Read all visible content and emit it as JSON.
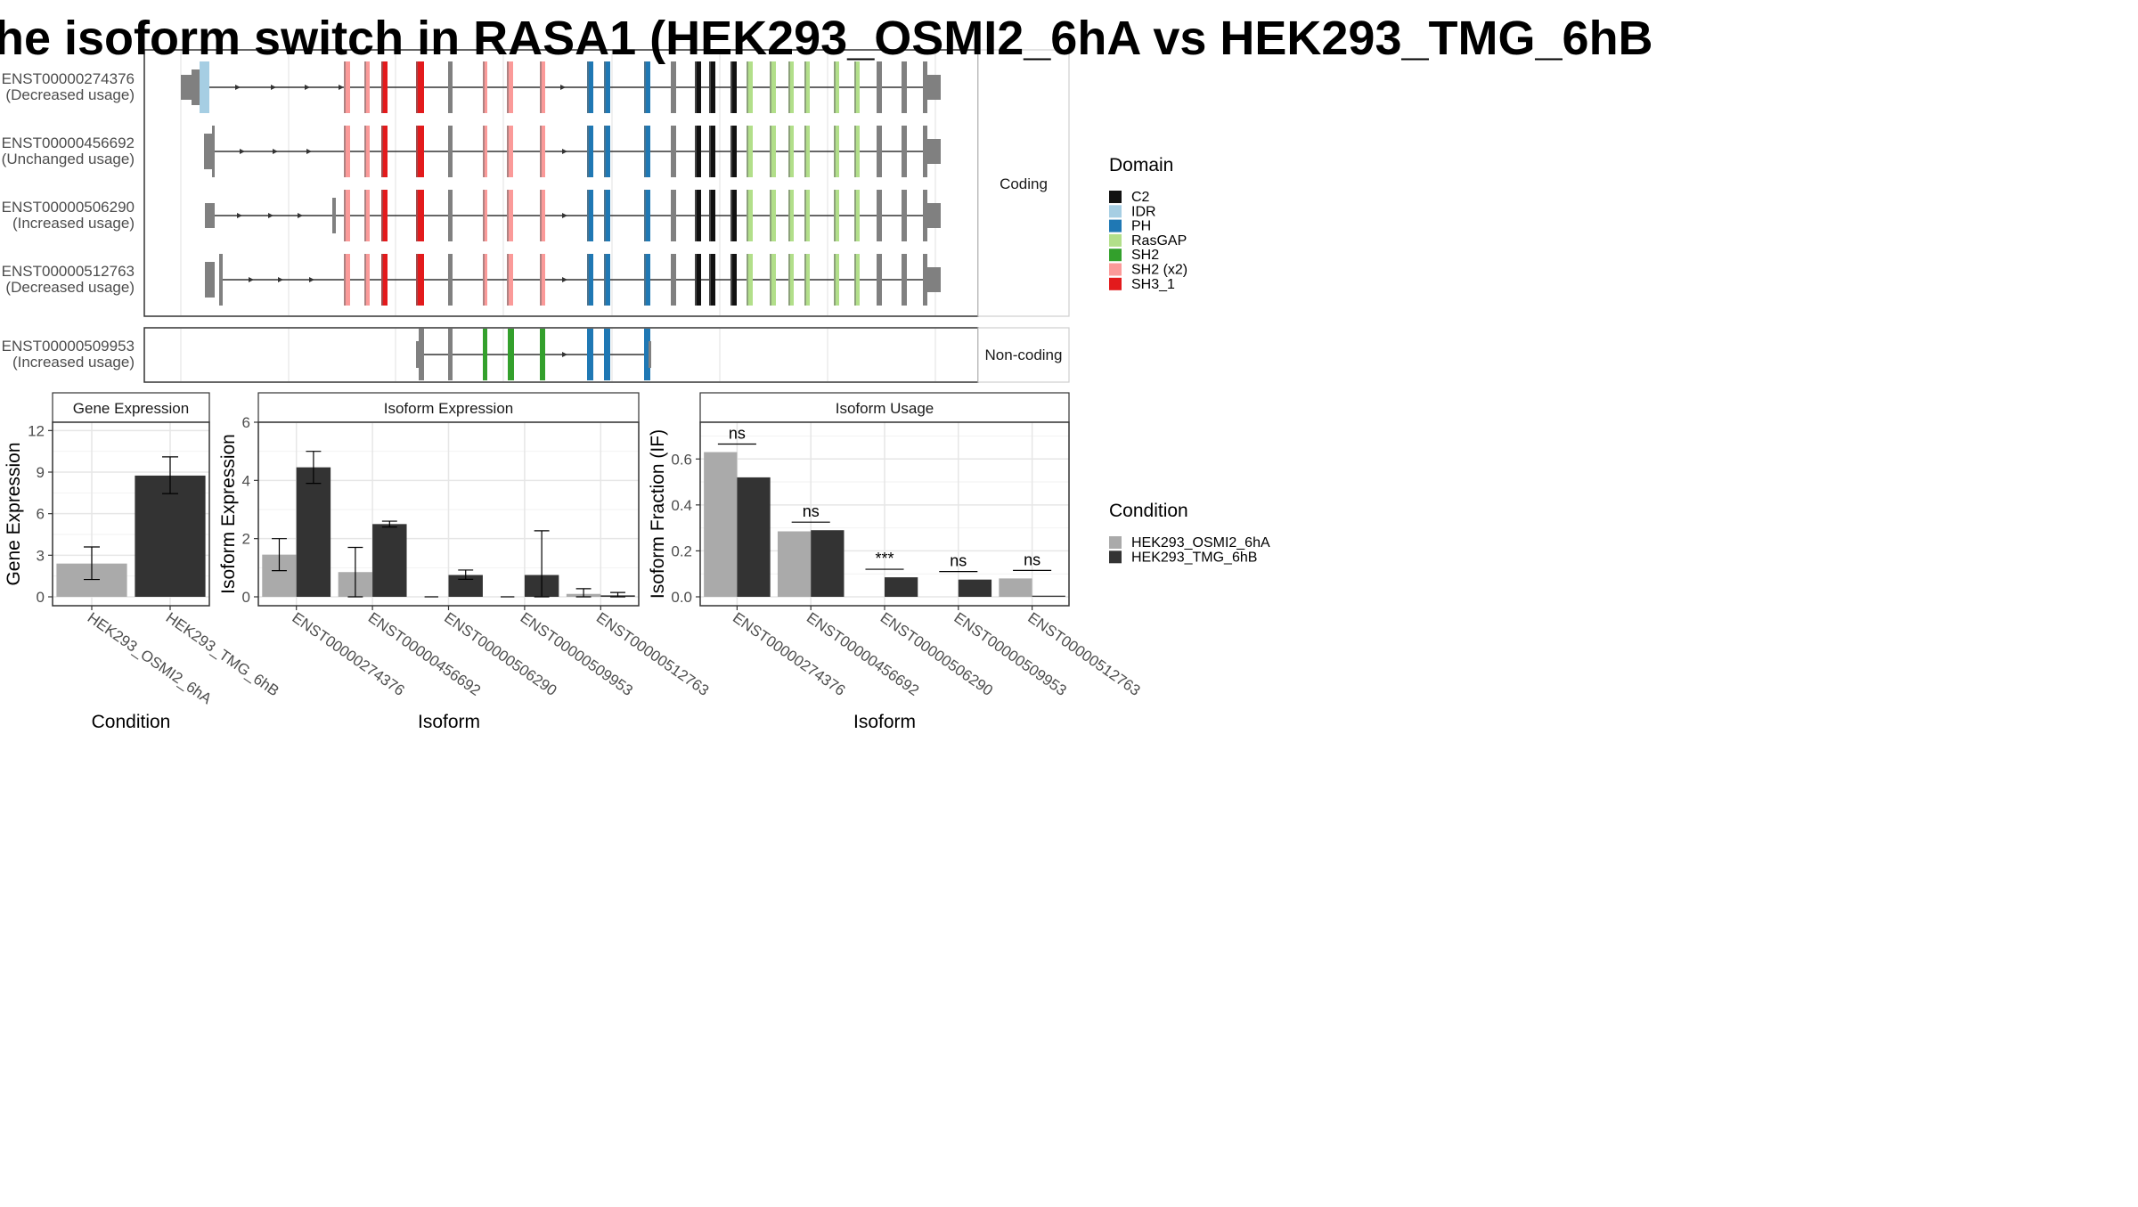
{
  "title": "he isoform switch in RASA1 (HEK293_OSMI2_6hA vs HEK293_TMG_6hB",
  "transcripts_panel": {
    "strip_coding": "Coding",
    "strip_noncoding": "Non-coding",
    "coding": [
      {
        "id": "ENST00000274376",
        "usage": "(Decreased usage)"
      },
      {
        "id": "ENST00000456692",
        "usage": "(Unchanged usage)"
      },
      {
        "id": "ENST00000506290",
        "usage": "(Increased usage)"
      },
      {
        "id": "ENST00000512763",
        "usage": "(Decreased usage)"
      }
    ],
    "noncoding": [
      {
        "id": "ENST00000509953",
        "usage": "(Increased usage)"
      }
    ]
  },
  "legend_domain": {
    "title": "Domain",
    "items": [
      {
        "label": "C2",
        "color": "#111111"
      },
      {
        "label": "IDR",
        "color": "#a6cee3"
      },
      {
        "label": "PH",
        "color": "#1f78b4"
      },
      {
        "label": "RasGAP",
        "color": "#b2df8a"
      },
      {
        "label": "SH2",
        "color": "#33a02c"
      },
      {
        "label": "SH2 (x2)",
        "color": "#fb9a99"
      },
      {
        "label": "SH3_1",
        "color": "#e31a1c"
      }
    ]
  },
  "legend_condition": {
    "title": "Condition",
    "items": [
      {
        "label": "HEK293_OSMI2_6hA",
        "color": "#aaaaaa"
      },
      {
        "label": "HEK293_TMG_6hB",
        "color": "#333333"
      }
    ]
  },
  "chart_data": [
    {
      "type": "bar",
      "panel": "Gene Expression",
      "xlabel": "Condition",
      "ylabel": "Gene Expression",
      "ylim": [
        0,
        12.6
      ],
      "yticks": [
        0,
        3,
        6,
        9,
        12
      ],
      "categories": [
        "HEK293_OSMI2_6hA",
        "HEK293_TMG_6hB"
      ],
      "values": [
        2.4,
        8.75
      ],
      "error_low": [
        1.25,
        7.45
      ],
      "error_high": [
        3.6,
        10.1
      ],
      "colors": [
        "#aaaaaa",
        "#333333"
      ],
      "grid": true
    },
    {
      "type": "bar",
      "panel": "Isoform Expression",
      "xlabel": "Isoform",
      "ylabel": "Isoform Expression",
      "ylim": [
        0,
        6.0
      ],
      "yticks": [
        0,
        2,
        4,
        6
      ],
      "categories": [
        "ENST00000274376",
        "ENST00000456692",
        "ENST00000506290",
        "ENST00000509953",
        "ENST00000512763"
      ],
      "series": [
        {
          "name": "HEK293_OSMI2_6hA",
          "color": "#aaaaaa",
          "values": [
            1.45,
            0.85,
            0.0,
            0.0,
            0.1
          ],
          "error_low": [
            0.9,
            0.0,
            0.0,
            0.0,
            0.0
          ],
          "error_high": [
            2.0,
            1.7,
            0.0,
            0.0,
            0.28
          ]
        },
        {
          "name": "HEK293_TMG_6hB",
          "color": "#333333",
          "values": [
            4.45,
            2.5,
            0.75,
            0.75,
            0.05
          ],
          "error_low": [
            3.9,
            2.4,
            0.6,
            0.0,
            0.0
          ],
          "error_high": [
            5.0,
            2.6,
            0.92,
            2.27,
            0.15
          ]
        }
      ],
      "grid": true
    },
    {
      "type": "bar",
      "panel": "Isoform Usage",
      "xlabel": "Isoform",
      "ylabel": "Isoform Fraction (IF)",
      "ylim": [
        0,
        0.76
      ],
      "yticks": [
        "0.0",
        "0.2",
        "0.4",
        "0.6"
      ],
      "categories": [
        "ENST00000274376",
        "ENST00000456692",
        "ENST00000506290",
        "ENST00000509953",
        "ENST00000512763"
      ],
      "series": [
        {
          "name": "HEK293_OSMI2_6hA",
          "color": "#aaaaaa",
          "values": [
            0.63,
            0.285,
            0.0,
            0.0,
            0.08
          ]
        },
        {
          "name": "HEK293_TMG_6hB",
          "color": "#333333",
          "values": [
            0.52,
            0.29,
            0.085,
            0.075,
            0.005
          ]
        }
      ],
      "annotations": [
        "ns",
        "ns",
        "***",
        "ns",
        "ns"
      ],
      "annotation_y": [
        0.665,
        0.325,
        0.12,
        0.11,
        0.115
      ],
      "grid": true
    }
  ]
}
